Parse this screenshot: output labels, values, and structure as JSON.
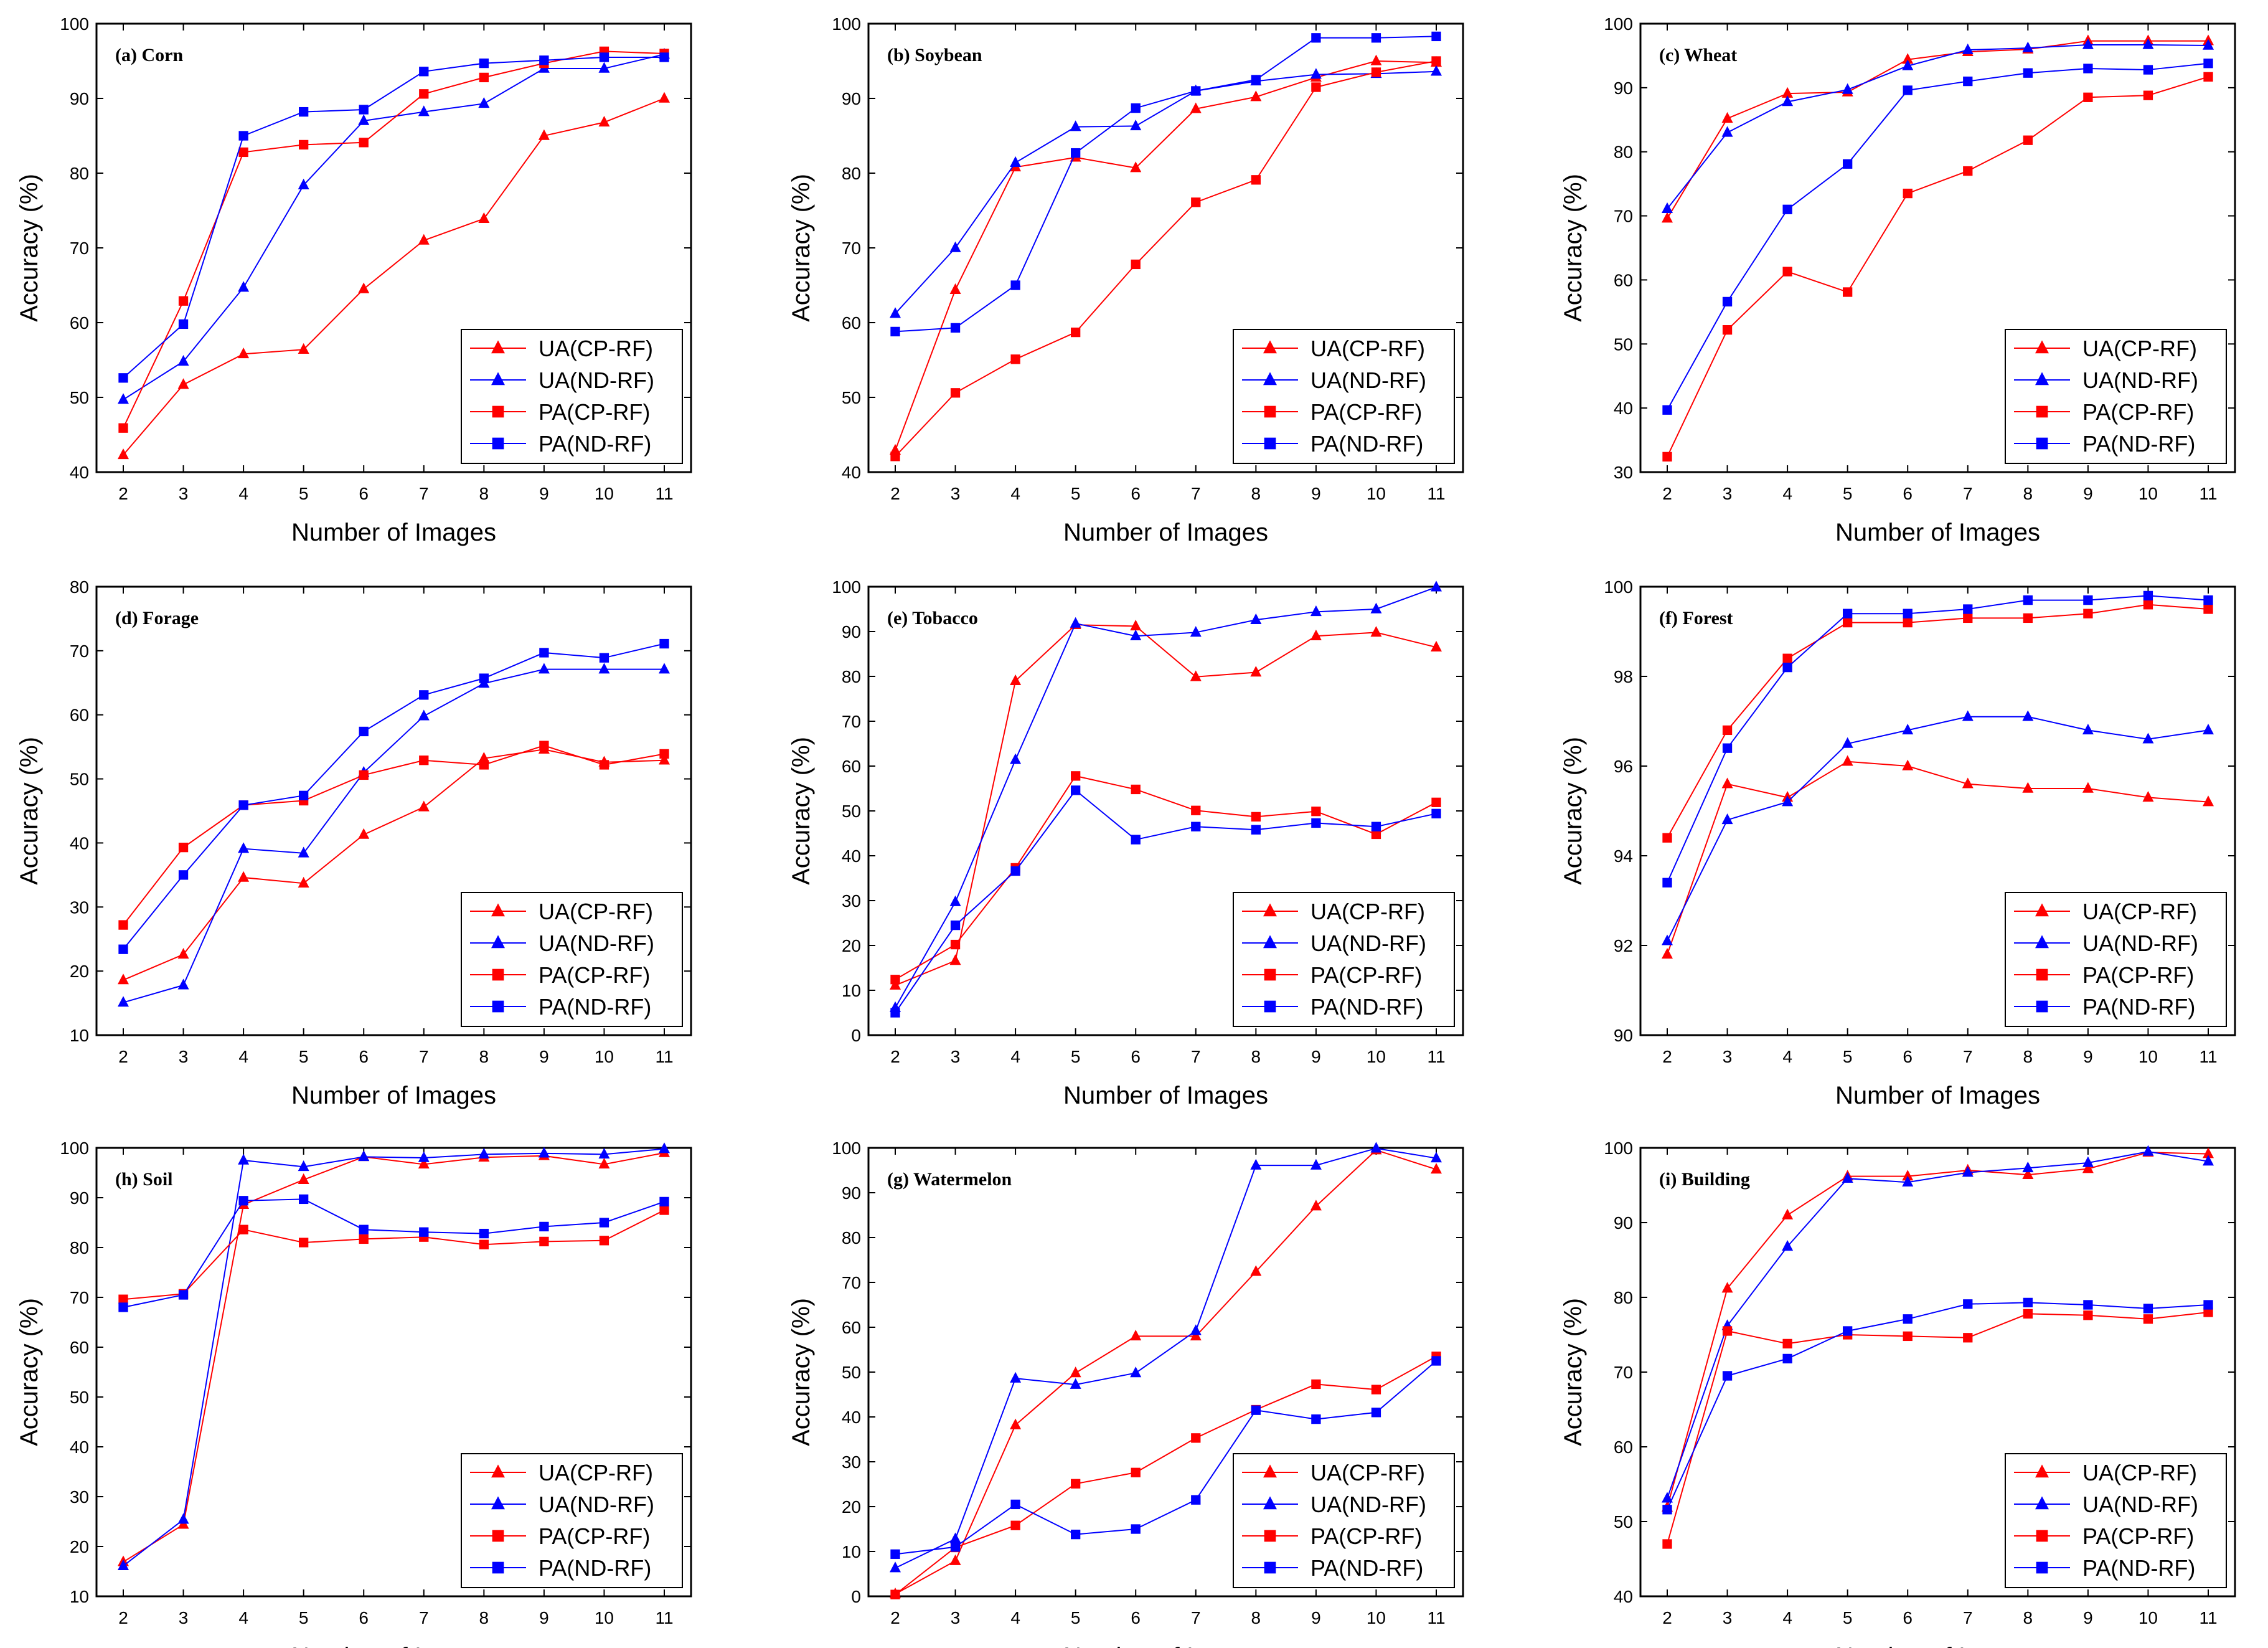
{
  "colors": {
    "red": "#ff0000",
    "blue": "#0000ff",
    "axis": "#000000"
  },
  "legend": [
    "UA(CP-RF)",
    "UA(ND-RF)",
    "PA(CP-RF)",
    "PA(ND-RF)"
  ],
  "chart_data": [
    {
      "type": "line",
      "title": "(a) Corn",
      "xlabel": "Number of Images",
      "ylabel": "Accuracy (%)",
      "x": [
        2,
        3,
        4,
        5,
        6,
        7,
        8,
        9,
        10,
        11
      ],
      "ylim": [
        40,
        100
      ],
      "yticks": [
        40,
        50,
        60,
        70,
        80,
        90,
        100
      ],
      "series": [
        {
          "name": "UA(CP-RF)",
          "values": [
            42.3,
            51.7,
            55.8,
            56.4,
            64.5,
            71.0,
            73.9,
            85.0,
            86.8,
            90.0
          ]
        },
        {
          "name": "UA(ND-RF)",
          "values": [
            49.7,
            54.8,
            64.7,
            78.4,
            87.0,
            88.2,
            89.3,
            94.0,
            94.0,
            95.9
          ]
        },
        {
          "name": "PA(CP-RF)",
          "values": [
            45.9,
            62.9,
            82.8,
            83.8,
            84.1,
            90.6,
            92.8,
            94.7,
            96.3,
            96.0
          ]
        },
        {
          "name": "PA(ND-RF)",
          "values": [
            52.6,
            59.8,
            85.0,
            88.2,
            88.5,
            93.6,
            94.7,
            95.1,
            95.5,
            95.5
          ]
        }
      ]
    },
    {
      "type": "line",
      "title": "(b) Soybean",
      "xlabel": "Number of Images",
      "ylabel": "Accuracy (%)",
      "x": [
        2,
        3,
        4,
        5,
        6,
        7,
        8,
        9,
        10,
        11
      ],
      "ylim": [
        40,
        100
      ],
      "yticks": [
        40,
        50,
        60,
        70,
        80,
        90,
        100
      ],
      "series": [
        {
          "name": "UA(CP-RF)",
          "values": [
            42.9,
            64.4,
            80.8,
            82.1,
            80.7,
            88.6,
            90.2,
            92.8,
            95.0,
            94.8
          ]
        },
        {
          "name": "UA(ND-RF)",
          "values": [
            61.2,
            70.0,
            81.4,
            86.2,
            86.3,
            91.0,
            92.3,
            93.2,
            93.3,
            93.6
          ]
        },
        {
          "name": "PA(CP-RF)",
          "values": [
            42.1,
            50.6,
            55.1,
            58.7,
            67.8,
            76.1,
            79.1,
            91.5,
            93.5,
            95.0
          ]
        },
        {
          "name": "PA(ND-RF)",
          "values": [
            58.8,
            59.3,
            65.0,
            82.7,
            88.7,
            91.0,
            92.5,
            98.1,
            98.1,
            98.3
          ]
        }
      ]
    },
    {
      "type": "line",
      "title": "(c) Wheat",
      "xlabel": "Number of Images",
      "ylabel": "Accuracy (%)",
      "x": [
        2,
        3,
        4,
        5,
        6,
        7,
        8,
        9,
        10,
        11
      ],
      "ylim": [
        30,
        100
      ],
      "yticks": [
        30,
        40,
        50,
        60,
        70,
        80,
        90,
        100
      ],
      "series": [
        {
          "name": "UA(CP-RF)",
          "values": [
            69.6,
            85.2,
            89.1,
            89.3,
            94.4,
            95.6,
            96.0,
            97.3,
            97.3,
            97.3
          ]
        },
        {
          "name": "UA(ND-RF)",
          "values": [
            71.1,
            83.0,
            87.8,
            89.7,
            93.4,
            95.9,
            96.2,
            96.7,
            96.7,
            96.6
          ]
        },
        {
          "name": "PA(CP-RF)",
          "values": [
            32.4,
            52.2,
            61.3,
            58.1,
            73.5,
            77.0,
            81.8,
            88.5,
            88.8,
            91.7
          ]
        },
        {
          "name": "PA(ND-RF)",
          "values": [
            39.7,
            56.6,
            71.0,
            78.1,
            89.6,
            91.0,
            92.3,
            93.0,
            92.8,
            93.8
          ]
        }
      ]
    },
    {
      "type": "line",
      "title": "(d) Forage",
      "xlabel": "Number of Images",
      "ylabel": "Accuracy (%)",
      "x": [
        2,
        3,
        4,
        5,
        6,
        7,
        8,
        9,
        10,
        11
      ],
      "ylim": [
        10,
        80
      ],
      "yticks": [
        10,
        20,
        30,
        40,
        50,
        60,
        70,
        80
      ],
      "series": [
        {
          "name": "UA(CP-RF)",
          "values": [
            18.6,
            22.6,
            34.6,
            33.7,
            41.3,
            45.6,
            53.2,
            54.6,
            52.6,
            52.9
          ]
        },
        {
          "name": "UA(ND-RF)",
          "values": [
            15.1,
            17.8,
            39.1,
            38.4,
            51.0,
            59.8,
            64.9,
            67.1,
            67.1,
            67.1
          ]
        },
        {
          "name": "PA(CP-RF)",
          "values": [
            27.2,
            39.3,
            45.9,
            46.6,
            50.6,
            52.9,
            52.2,
            55.2,
            52.2,
            53.9
          ]
        },
        {
          "name": "PA(ND-RF)",
          "values": [
            23.4,
            35.0,
            45.9,
            47.4,
            57.4,
            63.1,
            65.7,
            69.7,
            68.9,
            71.1
          ]
        }
      ]
    },
    {
      "type": "line",
      "title": "(e) Tobacco",
      "xlabel": "Number of Images",
      "ylabel": "Accuracy (%)",
      "x": [
        2,
        3,
        4,
        5,
        6,
        7,
        8,
        9,
        10,
        11
      ],
      "ylim": [
        0,
        100
      ],
      "yticks": [
        0,
        10,
        20,
        30,
        40,
        50,
        60,
        70,
        80,
        90,
        100
      ],
      "series": [
        {
          "name": "UA(CP-RF)",
          "values": [
            11.1,
            16.6,
            79.0,
            91.5,
            91.2,
            79.9,
            80.9,
            89.0,
            89.8,
            86.5
          ]
        },
        {
          "name": "UA(ND-RF)",
          "values": [
            6.1,
            29.7,
            61.4,
            91.8,
            89.0,
            89.8,
            92.6,
            94.4,
            95.0,
            99.9
          ]
        },
        {
          "name": "PA(CP-RF)",
          "values": [
            12.4,
            20.2,
            37.3,
            57.8,
            54.8,
            50.1,
            48.7,
            49.9,
            44.8,
            51.9
          ]
        },
        {
          "name": "PA(ND-RF)",
          "values": [
            5.0,
            24.5,
            36.6,
            54.6,
            43.6,
            46.5,
            45.8,
            47.3,
            46.5,
            49.4
          ]
        }
      ]
    },
    {
      "type": "line",
      "title": "(f) Forest",
      "xlabel": "Number of Images",
      "ylabel": "Accuracy (%)",
      "x": [
        2,
        3,
        4,
        5,
        6,
        7,
        8,
        9,
        10,
        11
      ],
      "ylim": [
        90,
        100
      ],
      "yticks": [
        90,
        92,
        94,
        96,
        98,
        100
      ],
      "series": [
        {
          "name": "UA(CP-RF)",
          "values": [
            91.8,
            95.6,
            95.3,
            96.1,
            96.0,
            95.6,
            95.5,
            95.5,
            95.3,
            95.2
          ]
        },
        {
          "name": "UA(ND-RF)",
          "values": [
            92.1,
            94.8,
            95.2,
            96.5,
            96.8,
            97.1,
            97.1,
            96.8,
            96.6,
            96.8
          ]
        },
        {
          "name": "PA(CP-RF)",
          "values": [
            94.4,
            96.8,
            98.4,
            99.2,
            99.2,
            99.3,
            99.3,
            99.4,
            99.6,
            99.5
          ]
        },
        {
          "name": "PA(ND-RF)",
          "values": [
            93.4,
            96.4,
            98.2,
            99.4,
            99.4,
            99.5,
            99.7,
            99.7,
            99.8,
            99.7
          ]
        }
      ]
    },
    {
      "type": "line",
      "title": "(h) Soil",
      "xlabel": "Number of Images",
      "ylabel": "Accuracy (%)",
      "x": [
        2,
        3,
        4,
        5,
        6,
        7,
        8,
        9,
        10,
        11
      ],
      "ylim": [
        10,
        100
      ],
      "yticks": [
        10,
        20,
        30,
        40,
        50,
        60,
        70,
        80,
        90,
        100
      ],
      "series": [
        {
          "name": "UA(CP-RF)",
          "values": [
            16.9,
            24.4,
            88.6,
            93.6,
            98.2,
            96.7,
            98.1,
            98.4,
            96.7,
            99.0
          ]
        },
        {
          "name": "UA(ND-RF)",
          "values": [
            16.1,
            25.4,
            97.5,
            96.2,
            98.2,
            98.0,
            98.7,
            98.9,
            98.7,
            99.8
          ]
        },
        {
          "name": "PA(CP-RF)",
          "values": [
            69.6,
            70.7,
            83.6,
            81.0,
            81.7,
            82.1,
            80.6,
            81.2,
            81.4,
            87.5
          ]
        },
        {
          "name": "PA(ND-RF)",
          "values": [
            68.0,
            70.5,
            89.4,
            89.7,
            83.6,
            83.1,
            82.8,
            84.2,
            85.0,
            89.2
          ]
        }
      ]
    },
    {
      "type": "line",
      "title": "(g) Watermelon",
      "xlabel": "Number of Images",
      "ylabel": "Accuracy (%)",
      "x": [
        2,
        3,
        4,
        5,
        6,
        7,
        8,
        9,
        10,
        11
      ],
      "ylim": [
        0,
        100
      ],
      "yticks": [
        0,
        10,
        20,
        30,
        40,
        50,
        60,
        70,
        80,
        90,
        100
      ],
      "series": [
        {
          "name": "UA(CP-RF)",
          "values": [
            0.5,
            7.9,
            38.2,
            49.8,
            58.0,
            58.0,
            72.4,
            87.0,
            99.5,
            95.2
          ]
        },
        {
          "name": "UA(ND-RF)",
          "values": [
            6.3,
            12.8,
            48.6,
            47.2,
            49.8,
            59.2,
            96.1,
            96.1,
            99.9,
            97.7
          ]
        },
        {
          "name": "PA(CP-RF)",
          "values": [
            0.4,
            10.9,
            15.8,
            25.1,
            27.6,
            35.3,
            41.6,
            47.3,
            46.1,
            53.5
          ]
        },
        {
          "name": "PA(ND-RF)",
          "values": [
            9.4,
            11.0,
            20.5,
            13.8,
            15.0,
            21.5,
            41.5,
            39.5,
            41.0,
            52.5
          ]
        }
      ]
    },
    {
      "type": "line",
      "title": "(i) Building",
      "xlabel": "Number of Images",
      "ylabel": "Accuracy (%)",
      "x": [
        2,
        3,
        4,
        5,
        6,
        7,
        8,
        9,
        10,
        11
      ],
      "ylim": [
        40,
        100
      ],
      "yticks": [
        40,
        50,
        60,
        70,
        80,
        90,
        100
      ],
      "series": [
        {
          "name": "UA(CP-RF)",
          "values": [
            51.9,
            81.2,
            91.0,
            96.2,
            96.2,
            97.0,
            96.4,
            97.2,
            99.4,
            99.2
          ]
        },
        {
          "name": "UA(ND-RF)",
          "values": [
            53.1,
            76.2,
            86.8,
            95.9,
            95.4,
            96.7,
            97.3,
            98.0,
            99.5,
            98.2
          ]
        },
        {
          "name": "PA(CP-RF)",
          "values": [
            47.0,
            75.5,
            73.8,
            75.0,
            74.8,
            74.6,
            77.8,
            77.6,
            77.1,
            78.0
          ]
        },
        {
          "name": "PA(ND-RF)",
          "values": [
            51.6,
            69.5,
            71.8,
            75.5,
            77.1,
            79.1,
            79.3,
            79.0,
            78.5,
            79.0
          ]
        }
      ]
    }
  ]
}
